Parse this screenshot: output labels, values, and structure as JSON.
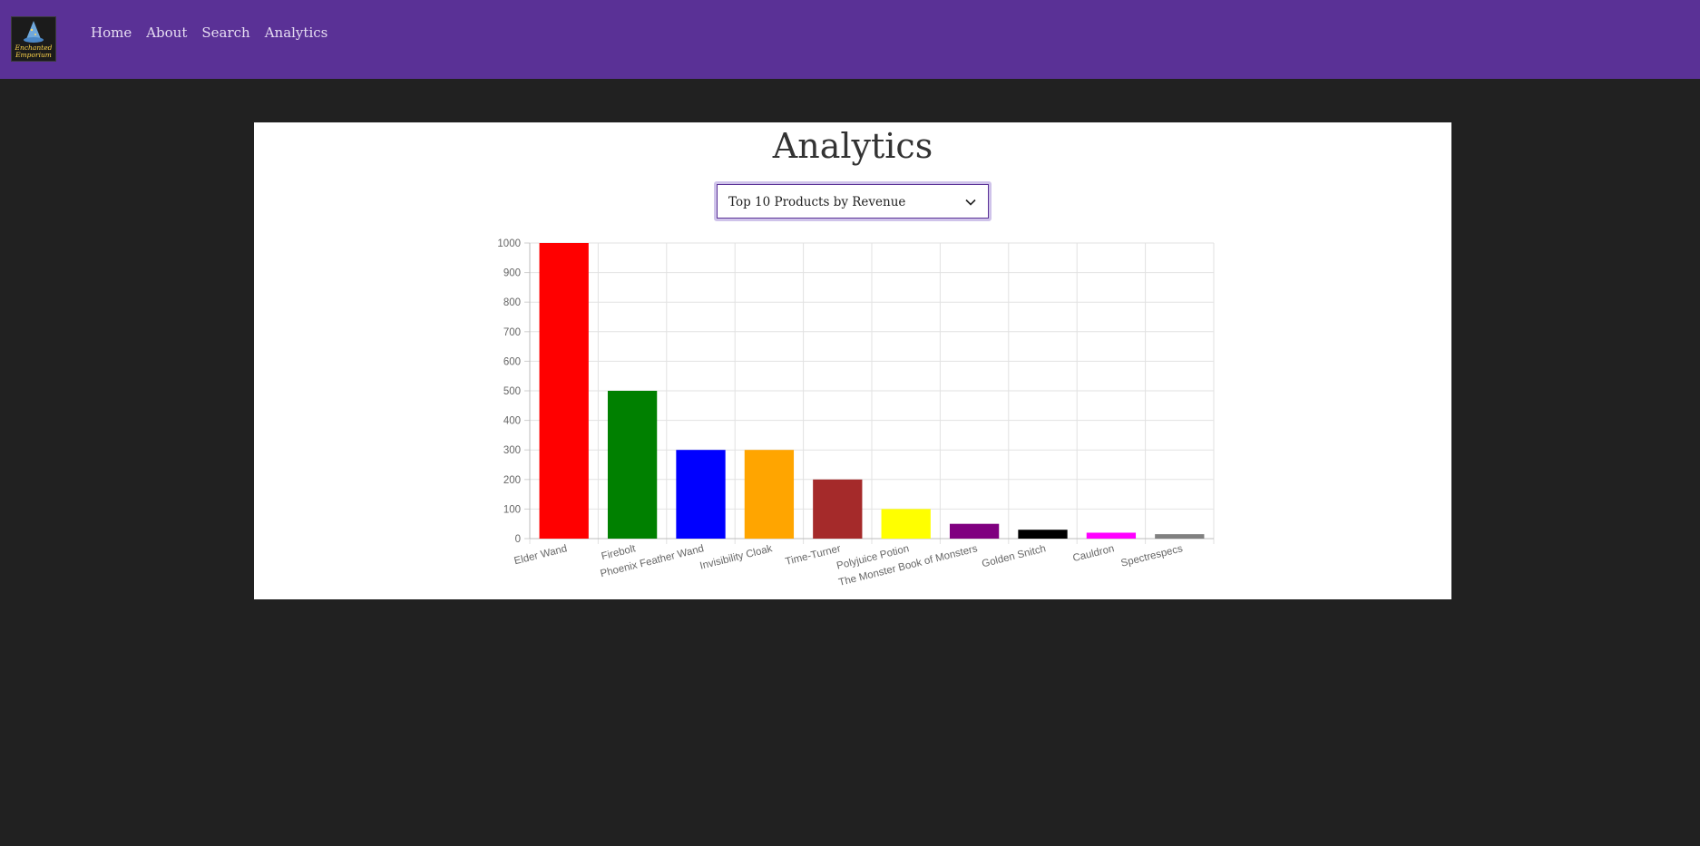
{
  "header": {
    "logo_text_line1": "Enchanted",
    "logo_text_line2": "Emporium",
    "nav": [
      "Home",
      "About",
      "Search",
      "Analytics"
    ]
  },
  "main": {
    "title": "Analytics",
    "report_select": {
      "selected": "Top 10 Products by Revenue"
    }
  },
  "colors": {
    "nav_bg": "#5a3196",
    "page_bg": "#212121",
    "panel_bg": "#ffffff"
  },
  "chart_data": {
    "type": "bar",
    "categories": [
      "Elder Wand",
      "Firebolt",
      "Phoenix Feather Wand",
      "Invisibility Cloak",
      "Time-Turner",
      "Polyjuice Potion",
      "The Monster Book of Monsters",
      "Golden Snitch",
      "Cauldron",
      "Spectrespecs"
    ],
    "values": [
      1000,
      500,
      300,
      300,
      200,
      100,
      50,
      30,
      20,
      15
    ],
    "bar_colors": [
      "#ff0000",
      "#008000",
      "#0000ff",
      "#ffa500",
      "#a52a2a",
      "#ffff00",
      "#800080",
      "#000000",
      "#ff00ff",
      "#808080"
    ],
    "ylim": [
      0,
      1000
    ],
    "yticks": [
      0,
      100,
      200,
      300,
      400,
      500,
      600,
      700,
      800,
      900,
      1000
    ],
    "grid": true,
    "legend": "none"
  }
}
